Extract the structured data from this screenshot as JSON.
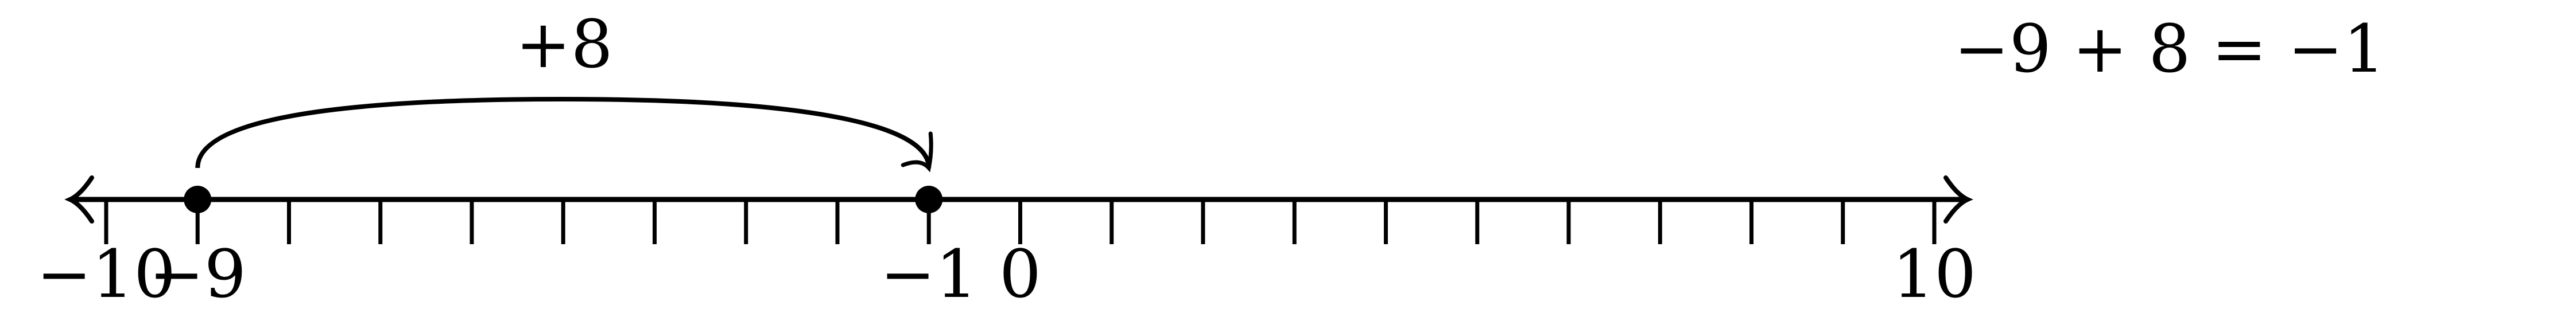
{
  "number_line": {
    "min": -10,
    "max": 10,
    "tick_step": 1,
    "labels": [
      {
        "value": -10,
        "text": "−10"
      },
      {
        "value": -9,
        "text": "−9"
      },
      {
        "value": -1,
        "text": "−1"
      },
      {
        "value": 0,
        "text": "0"
      },
      {
        "value": 10,
        "text": "10"
      }
    ],
    "points": [
      -9,
      -1
    ]
  },
  "jump": {
    "from": -9,
    "to": -1,
    "label": "+8"
  },
  "equation": "−9 + 8 = −1",
  "colors": {
    "line": "#000000",
    "point": "#000000",
    "background": "#ffffff"
  }
}
